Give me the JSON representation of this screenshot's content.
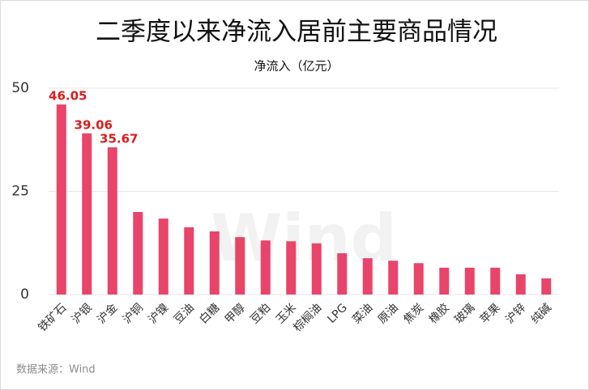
{
  "chart_data": {
    "type": "bar",
    "title": "二季度以来净流入居前主要商品情况",
    "subtitle": "净流入（亿元）",
    "source": "数据来源：Wind",
    "watermark": "Wind",
    "categories": [
      "铁矿石",
      "沪银",
      "沪金",
      "沪铜",
      "沪镍",
      "豆油",
      "白糖",
      "甲醇",
      "豆粕",
      "玉米",
      "棕榈油",
      "LPG",
      "菜油",
      "原油",
      "焦炭",
      "橡胶",
      "玻璃",
      "苹果",
      "沪锌",
      "纯碱"
    ],
    "values": [
      46.05,
      39.06,
      35.67,
      20.0,
      18.4,
      16.3,
      15.3,
      13.9,
      13.1,
      12.9,
      12.4,
      10.0,
      8.8,
      8.2,
      7.6,
      6.5,
      6.5,
      6.5,
      4.9,
      3.9
    ],
    "value_labels": [
      "46.05",
      "39.06",
      "35.67",
      null,
      null,
      null,
      null,
      null,
      null,
      null,
      null,
      null,
      null,
      null,
      null,
      null,
      null,
      null,
      null,
      null
    ],
    "color": "#e9446a",
    "label_color": "#d81e1e",
    "ylim": [
      0,
      50
    ],
    "yticks": [
      0,
      25,
      50
    ],
    "grid": true
  }
}
